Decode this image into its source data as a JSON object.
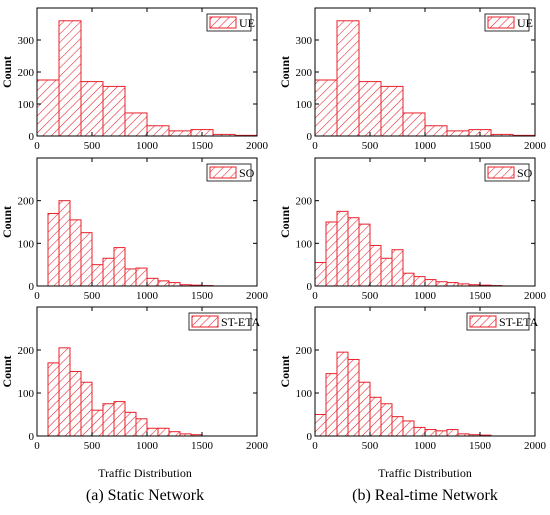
{
  "captions": [
    "(a) Static Network",
    "(b) Real-time Network"
  ],
  "xlabel": "Traffic Distribution",
  "colors": {
    "bar_stroke": "#e8202a",
    "hatch": "#e8202a"
  },
  "chart_data": [
    {
      "type": "bar",
      "title": "",
      "column": "(a) Static Network",
      "legend": "UE",
      "ylabel": "Count",
      "xlabel": "",
      "xlim": [
        0,
        2000
      ],
      "ylim": [
        0,
        400
      ],
      "xticks": [
        0,
        500,
        1000,
        1500,
        2000
      ],
      "yticks": [
        0,
        100,
        200,
        300
      ],
      "bin_edges": [
        0,
        200,
        400,
        600,
        800,
        1000,
        1200,
        1400,
        1600,
        1800,
        2000
      ],
      "values": [
        175,
        360,
        170,
        155,
        72,
        32,
        16,
        20,
        5,
        2
      ],
      "legend_position": "top-right",
      "grid": false
    },
    {
      "type": "bar",
      "title": "",
      "column": "(b) Real-time Network",
      "legend": "UE",
      "ylabel": "Count",
      "xlabel": "",
      "xlim": [
        0,
        2000
      ],
      "ylim": [
        0,
        400
      ],
      "xticks": [
        0,
        500,
        1000,
        1500,
        2000
      ],
      "yticks": [
        0,
        100,
        200,
        300
      ],
      "bin_edges": [
        0,
        200,
        400,
        600,
        800,
        1000,
        1200,
        1400,
        1600,
        1800,
        2000
      ],
      "values": [
        175,
        360,
        170,
        155,
        72,
        32,
        16,
        20,
        5,
        2
      ],
      "legend_position": "top-right",
      "grid": false
    },
    {
      "type": "bar",
      "title": "",
      "column": "(a) Static Network",
      "legend": "SO",
      "ylabel": "Count",
      "xlabel": "",
      "xlim": [
        0,
        2000
      ],
      "ylim": [
        0,
        300
      ],
      "xticks": [
        0,
        500,
        1000,
        1500,
        2000
      ],
      "yticks": [
        0,
        100,
        200
      ],
      "bin_edges": [
        100,
        200,
        300,
        400,
        500,
        600,
        700,
        800,
        900,
        1000,
        1100,
        1200,
        1300,
        1400,
        1500,
        1600
      ],
      "values": [
        170,
        200,
        155,
        125,
        50,
        65,
        90,
        40,
        42,
        18,
        12,
        8,
        3,
        2,
        1
      ],
      "legend_position": "top-right",
      "grid": false
    },
    {
      "type": "bar",
      "title": "",
      "column": "(b) Real-time Network",
      "legend": "SO",
      "ylabel": "Count",
      "xlabel": "",
      "xlim": [
        0,
        2000
      ],
      "ylim": [
        0,
        300
      ],
      "xticks": [
        0,
        500,
        1000,
        1500,
        2000
      ],
      "yticks": [
        0,
        100,
        200
      ],
      "bin_edges": [
        0,
        100,
        200,
        300,
        400,
        500,
        600,
        700,
        800,
        900,
        1000,
        1100,
        1200,
        1300,
        1400,
        1500,
        1600,
        1700
      ],
      "values": [
        55,
        150,
        175,
        160,
        145,
        95,
        65,
        85,
        30,
        22,
        15,
        10,
        8,
        5,
        3,
        2,
        1
      ],
      "legend_position": "top-right",
      "grid": false
    },
    {
      "type": "bar",
      "title": "",
      "column": "(a) Static Network",
      "legend": "ST-ETA",
      "ylabel": "Count",
      "xlabel": "Traffic Distribution",
      "xlim": [
        0,
        2000
      ],
      "ylim": [
        0,
        300
      ],
      "xticks": [
        0,
        500,
        1000,
        1500,
        2000
      ],
      "yticks": [
        0,
        100,
        200
      ],
      "bin_edges": [
        100,
        200,
        300,
        400,
        500,
        600,
        700,
        800,
        900,
        1000,
        1100,
        1200,
        1300,
        1400,
        1500
      ],
      "values": [
        170,
        205,
        150,
        125,
        60,
        75,
        80,
        55,
        40,
        18,
        18,
        10,
        5,
        3
      ],
      "legend_position": "top-right",
      "grid": false
    },
    {
      "type": "bar",
      "title": "",
      "column": "(b) Real-time Network",
      "legend": "ST-ETA",
      "ylabel": "Count",
      "xlabel": "Traffic Distribution",
      "xlim": [
        0,
        2000
      ],
      "ylim": [
        0,
        300
      ],
      "xticks": [
        0,
        500,
        1000,
        1500,
        2000
      ],
      "yticks": [
        0,
        100,
        200
      ],
      "bin_edges": [
        0,
        100,
        200,
        300,
        400,
        500,
        600,
        700,
        800,
        900,
        1000,
        1100,
        1200,
        1300,
        1400,
        1500,
        1600
      ],
      "values": [
        50,
        145,
        195,
        178,
        125,
        90,
        75,
        45,
        35,
        20,
        15,
        12,
        15,
        5,
        3,
        2
      ],
      "legend_position": "top-right",
      "grid": false
    }
  ]
}
